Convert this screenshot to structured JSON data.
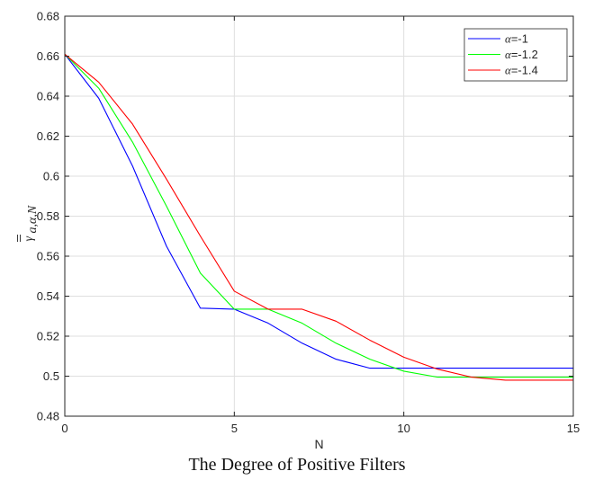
{
  "caption": "The Degree of Positive Filters",
  "chart_data": {
    "type": "line",
    "title": "",
    "xlabel": "N",
    "ylabel": "γ̄̄ a,α,N",
    "xlim": [
      0,
      15
    ],
    "ylim": [
      0.48,
      0.68
    ],
    "xticks": [
      0,
      5,
      10,
      15
    ],
    "xtick_labels": [
      "0",
      "5",
      "10",
      "15"
    ],
    "yticks": [
      0.48,
      0.5,
      0.52,
      0.54,
      0.56,
      0.58,
      0.6,
      0.62,
      0.64,
      0.66,
      0.68
    ],
    "ytick_labels": [
      "0.48",
      "0.5",
      "0.52",
      "0.54",
      "0.56",
      "0.58",
      "0.6",
      "0.62",
      "0.64",
      "0.66",
      "0.68"
    ],
    "grid": true,
    "legend_position": "top-right",
    "x": [
      0,
      1,
      2,
      3,
      4,
      5,
      6,
      7,
      8,
      9,
      10,
      11,
      12,
      13,
      14,
      15
    ],
    "series": [
      {
        "name": "α=-1",
        "legend_symbol": "α",
        "legend_rest": "=-1",
        "color": "#0000ff",
        "values": [
          0.661,
          0.639,
          0.605,
          0.565,
          0.534,
          0.5335,
          0.5265,
          0.5165,
          0.5085,
          0.504,
          0.504,
          0.504,
          0.504,
          0.504,
          0.504,
          0.504
        ]
      },
      {
        "name": "α=-1.2",
        "legend_symbol": "α",
        "legend_rest": "=-1.2",
        "color": "#00ff00",
        "values": [
          0.661,
          0.644,
          0.617,
          0.585,
          0.5515,
          0.5335,
          0.5335,
          0.5265,
          0.5165,
          0.5085,
          0.5025,
          0.4995,
          0.4995,
          0.4995,
          0.4995,
          0.4995
        ]
      },
      {
        "name": "α=-1.4",
        "legend_symbol": "α",
        "legend_rest": "=-1.4",
        "color": "#ff0000",
        "values": [
          0.661,
          0.647,
          0.626,
          0.5985,
          0.57,
          0.5425,
          0.5335,
          0.5335,
          0.5275,
          0.518,
          0.5095,
          0.5035,
          0.4995,
          0.498,
          0.498,
          0.498
        ]
      }
    ]
  }
}
